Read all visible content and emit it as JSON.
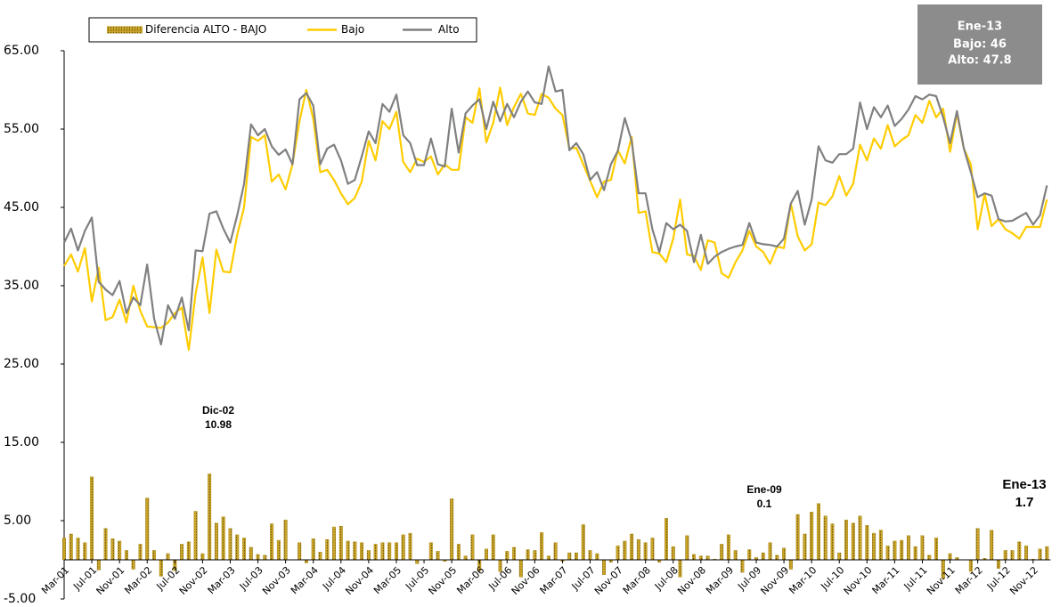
{
  "chart_data": {
    "type": "combo",
    "categories": [
      "Mar-01",
      null,
      null,
      null,
      "Jul-01",
      null,
      null,
      null,
      "Nov-01",
      null,
      null,
      null,
      "Mar-02",
      null,
      null,
      null,
      "Jul-02",
      null,
      null,
      null,
      "Nov-02",
      null,
      null,
      null,
      "Mar-03",
      null,
      null,
      null,
      "Jul-03",
      null,
      null,
      null,
      "Nov-03",
      null,
      null,
      null,
      "Mar-04",
      null,
      null,
      null,
      "Jul-04",
      null,
      null,
      null,
      "Nov-04",
      null,
      null,
      null,
      "Mar-05",
      null,
      null,
      null,
      "Jul-05",
      null,
      null,
      null,
      "Nov-05",
      null,
      null,
      null,
      "Mar-06",
      null,
      null,
      null,
      "Jul-06",
      null,
      null,
      null,
      "Nov-06",
      null,
      null,
      null,
      "Mar-07",
      null,
      null,
      null,
      "Jul-07",
      null,
      null,
      null,
      "Nov-07",
      null,
      null,
      null,
      "Mar-08",
      null,
      null,
      null,
      "Jul-08",
      null,
      null,
      null,
      "Nov-08",
      null,
      null,
      null,
      "Mar-09",
      null,
      null,
      null,
      "Jul-09",
      null,
      null,
      null,
      "Nov-09",
      null,
      null,
      null,
      "Mar-10",
      null,
      null,
      null,
      "Jul-10",
      null,
      null,
      null,
      "Nov-10",
      null,
      null,
      null,
      "Mar-11",
      null,
      null,
      null,
      "Jul-11",
      null,
      null,
      null,
      "Nov-11",
      null,
      null,
      null,
      "Mar-12",
      null,
      null,
      null,
      "Jul-12",
      null,
      null,
      null,
      "Nov-12",
      null,
      null
    ],
    "series": [
      {
        "name": "Diferencia ALTO - BAJO",
        "type": "bar",
        "color": "#c9a227",
        "values": [
          2.8,
          3.3,
          2.8,
          2.2,
          10.6,
          -1.3,
          4,
          2.7,
          2.4,
          1.2,
          -1.2,
          2,
          7.9,
          1.2,
          -2.1,
          0.8,
          -1.4,
          2,
          2.3,
          6.2,
          0.8,
          10.98,
          4.7,
          5.5,
          4,
          3.2,
          2.8,
          1.6,
          0.7,
          0.6,
          4.6,
          2.5,
          5.1,
          0,
          2.2,
          -0.4,
          2.7,
          1,
          2.6,
          4.2,
          4.3,
          2.4,
          2.3,
          2.2,
          1.2,
          2,
          2.2,
          2.2,
          2.2,
          3.2,
          3.4,
          -0.5,
          0,
          2.2,
          1.1,
          -0.2,
          7.8,
          2,
          0.5,
          3.2,
          -1.4,
          1.4,
          3.2,
          -1.5,
          1.1,
          1.6,
          -2.2,
          1.3,
          1.2,
          3.5,
          0.5,
          2.2,
          -0.2,
          0.9,
          0.9,
          4.5,
          1.2,
          0.8,
          -1.9,
          -0.3,
          1.8,
          2.4,
          3.3,
          2.6,
          2.2,
          2.8,
          -0.3,
          5.3,
          1.7,
          -2.2,
          3.1,
          0.7,
          0.5,
          0.5,
          0.1,
          2,
          3.2,
          1.2,
          -1.6,
          1.3,
          0.3,
          0.9,
          2.2,
          0.6,
          1.5,
          -1.2,
          5.8,
          3.3,
          6.1,
          7.2,
          5.6,
          4.6,
          0.9,
          5.1,
          4.7,
          5.6,
          4.4,
          3.4,
          3.8,
          1.8,
          2.4,
          2.5,
          3.1,
          1.7,
          3.1,
          0.6,
          2.8,
          -2.4,
          0.8,
          0.3,
          0,
          -1.5,
          4,
          0.2,
          3.8,
          -1.1,
          1.2,
          1.2,
          2.3,
          1.8,
          0.1,
          1.4,
          1.7
        ]
      },
      {
        "name": "Bajo",
        "type": "line",
        "color": "#ffcc00",
        "values": [
          37.5,
          39,
          36.8,
          39.8,
          33,
          37.3,
          30.6,
          31,
          33.2,
          30.3,
          35,
          31.8,
          29.8,
          29.7,
          29.6,
          30.3,
          31.5,
          32.2,
          26.8,
          34,
          38.6,
          31.5,
          39.6,
          36.8,
          36.7,
          41.5,
          45,
          54,
          53.5,
          54.2,
          48.3,
          49.2,
          47.3,
          50.5,
          56,
          60,
          56.3,
          49.5,
          49.8,
          48.5,
          46.8,
          45.4,
          46.2,
          48.3,
          53.5,
          51,
          56,
          55,
          57.2,
          50.8,
          49.5,
          51.2,
          50.8,
          51.5,
          49.2,
          50.5,
          49.8,
          49.8,
          56.5,
          55.8,
          60.2,
          53.3,
          55.8,
          60.3,
          55.5,
          57.8,
          59.5,
          57,
          56.8,
          59.5,
          59,
          57.6,
          56.8,
          52.5,
          52.6,
          50.5,
          48.4,
          46.3,
          48.3,
          48.5,
          52.3,
          50.6,
          54,
          44.3,
          44.5,
          39.3,
          39.1,
          38,
          41,
          46,
          39,
          38.8,
          37,
          40.8,
          40.5,
          36.6,
          36,
          38,
          39.5,
          42,
          40,
          39.3,
          37.8,
          40,
          39.8,
          45.5,
          41.3,
          39.5,
          40.3,
          45.6,
          45.3,
          46.4,
          49,
          46.5,
          48,
          53,
          51,
          53.8,
          52.5,
          55.5,
          52.8,
          53.6,
          54.2,
          56.8,
          55.8,
          58.6,
          56.5,
          57.6,
          52.1,
          57,
          52.5,
          50.5,
          42.2,
          46.7,
          42.6,
          43.5,
          42.2,
          41.7,
          41,
          42.5,
          42.5,
          42.5,
          46
        ]
      },
      {
        "name": "Alto",
        "type": "line",
        "color": "#808080",
        "values": [
          40.5,
          42.3,
          39.5,
          42,
          43.7,
          35.5,
          34.5,
          33.8,
          35.6,
          31.5,
          33.5,
          32.5,
          37.7,
          30.8,
          27.5,
          32.5,
          30.8,
          33.5,
          29.3,
          39.5,
          39.4,
          44.2,
          44.5,
          42.3,
          40.5,
          44,
          48,
          55.6,
          54.2,
          55,
          52.8,
          51.7,
          52.4,
          50.5,
          58.8,
          59.6,
          58,
          50.5,
          52.5,
          53,
          51,
          48,
          48.5,
          51.5,
          54.7,
          53.2,
          58.2,
          57.2,
          59.4,
          54.2,
          53.2,
          50.4,
          50.4,
          53.8,
          50.5,
          50.2,
          57.6,
          52,
          57,
          58,
          58.8,
          55,
          58.5,
          56,
          58.2,
          56.5,
          58.5,
          59.8,
          58.4,
          58.2,
          63,
          59.8,
          60,
          52.3,
          53.2,
          51.8,
          48.5,
          49.5,
          47.2,
          50.5,
          52.2,
          56.4,
          53.5,
          46.8,
          46.8,
          42.2,
          39.3,
          43,
          42.2,
          42.8,
          42,
          38,
          41.5,
          37.8,
          38.7,
          39.3,
          39.7,
          40,
          40.2,
          43,
          40.5,
          40.3,
          40.2,
          40,
          41,
          45.5,
          47.1,
          42.8,
          46,
          52.8,
          51,
          50.7,
          51.8,
          51.8,
          52.5,
          58.4,
          55,
          57.8,
          56.5,
          58,
          55.4,
          56.3,
          57.5,
          59.2,
          58.8,
          59.4,
          59.2,
          56.5,
          53.2,
          57.3,
          52.5,
          49.5,
          46.3,
          46.8,
          46.5,
          43.5,
          43.2,
          43.3,
          43.8,
          44.3,
          42.8,
          44,
          47.8
        ]
      }
    ],
    "ylim": [
      -5,
      65
    ],
    "yticks": [
      {
        "value": -5,
        "label": "-5.00"
      },
      {
        "value": 5,
        "label": "5.00"
      },
      {
        "value": 15,
        "label": "15.00"
      },
      {
        "value": 25,
        "label": "25.00"
      },
      {
        "value": 35,
        "label": "35.00"
      },
      {
        "value": 45,
        "label": "45.00"
      },
      {
        "value": 55,
        "label": "55.00"
      },
      {
        "value": 65,
        "label": "65.00"
      }
    ],
    "grid": false,
    "legend": "top-left",
    "annotations": [
      {
        "text": "Dic-02",
        "value": 10.98
      },
      {
        "text": "Ene-09",
        "value": 0.1
      },
      {
        "text": "Ene-13",
        "value": 1.7
      }
    ],
    "info_box": {
      "title": "Ene-13",
      "line1": "Bajo: 46",
      "line2": "Alto: 47.8"
    }
  }
}
